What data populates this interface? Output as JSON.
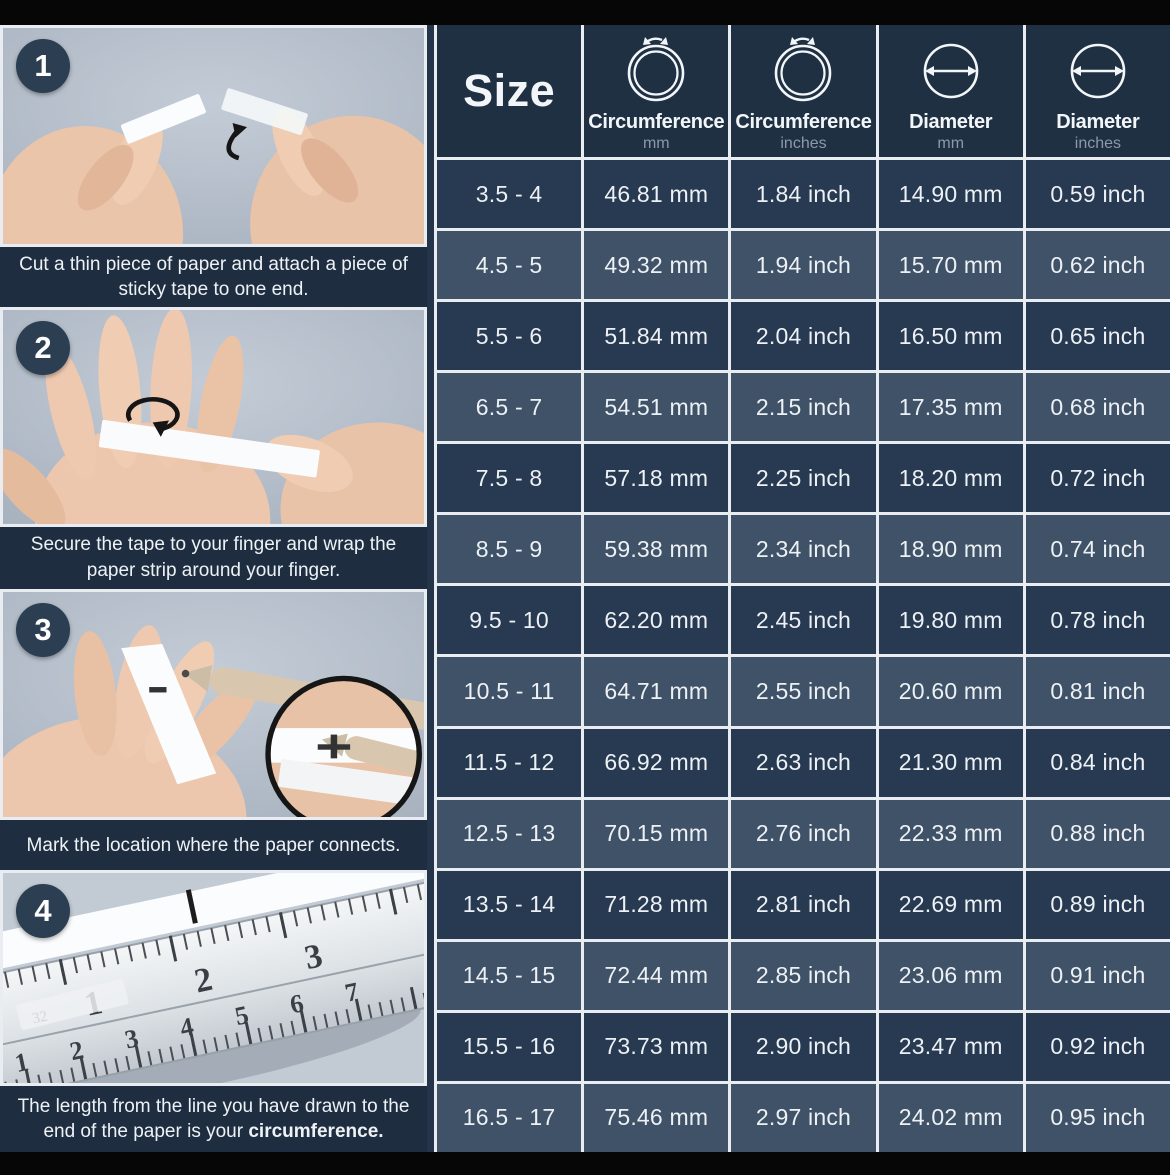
{
  "steps": [
    {
      "number": "1",
      "caption": "Cut a thin piece of paper and attach a piece of sticky tape to one end.",
      "caption_bold": ""
    },
    {
      "number": "2",
      "caption": "Secure the tape to your finger and wrap the paper strip around your finger.",
      "caption_bold": ""
    },
    {
      "number": "3",
      "caption": "Mark the location where the paper connects.",
      "caption_bold": ""
    },
    {
      "number": "4",
      "caption": "The length from the line you have drawn to the end of the paper is your ",
      "caption_bold": "circumference.",
      "ruler_inch_labels": [
        "1",
        "2",
        "3"
      ],
      "ruler_cm_labels": [
        "1",
        "2",
        "3",
        "4",
        "5",
        "6",
        "7"
      ],
      "ruler_fraction_label": "32"
    }
  ],
  "chart_data": {
    "type": "table",
    "columns": [
      {
        "label": "Size",
        "unit": "",
        "icon": ""
      },
      {
        "label": "Circumference",
        "unit": "mm",
        "icon": "ring-circumference-icon"
      },
      {
        "label": "Circumference",
        "unit": "inches",
        "icon": "ring-circumference-icon"
      },
      {
        "label": "Diameter",
        "unit": "mm",
        "icon": "diameter-icon"
      },
      {
        "label": "Diameter",
        "unit": "inches",
        "icon": "diameter-icon"
      }
    ],
    "rows": [
      [
        "3.5 - 4",
        "46.81 mm",
        "1.84 inch",
        "14.90 mm",
        "0.59 inch"
      ],
      [
        "4.5 - 5",
        "49.32 mm",
        "1.94 inch",
        "15.70 mm",
        "0.62 inch"
      ],
      [
        "5.5 - 6",
        "51.84 mm",
        "2.04 inch",
        "16.50 mm",
        "0.65 inch"
      ],
      [
        "6.5 - 7",
        "54.51 mm",
        "2.15 inch",
        "17.35 mm",
        "0.68 inch"
      ],
      [
        "7.5 - 8",
        "57.18 mm",
        "2.25 inch",
        "18.20 mm",
        "0.72 inch"
      ],
      [
        "8.5 - 9",
        "59.38 mm",
        "2.34 inch",
        "18.90 mm",
        "0.74 inch"
      ],
      [
        "9.5 - 10",
        "62.20 mm",
        "2.45 inch",
        "19.80 mm",
        "0.78 inch"
      ],
      [
        "10.5 - 11",
        "64.71 mm",
        "2.55 inch",
        "20.60 mm",
        "0.81 inch"
      ],
      [
        "11.5 - 12",
        "66.92 mm",
        "2.63 inch",
        "21.30 mm",
        "0.84 inch"
      ],
      [
        "12.5 - 13",
        "70.15 mm",
        "2.76 inch",
        "22.33 mm",
        "0.88 inch"
      ],
      [
        "13.5 - 14",
        "71.28 mm",
        "2.81 inch",
        "22.69 mm",
        "0.89 inch"
      ],
      [
        "14.5 - 15",
        "72.44 mm",
        "2.85 inch",
        "23.06 mm",
        "0.91 inch"
      ],
      [
        "15.5 - 16",
        "73.73 mm",
        "2.90 inch",
        "23.47 mm",
        "0.92 inch"
      ],
      [
        "16.5 - 17",
        "75.46 mm",
        "2.97 inch",
        "24.02 mm",
        "0.95 inch"
      ]
    ]
  },
  "colors": {
    "frame_bg": "#243549",
    "top_bottom_bar": "#060606",
    "header_bg": "#1f3043",
    "cell_dark": "#273a51",
    "cell_light": "#3f5267",
    "grid_line": "#e9edf1",
    "caption_bg": "#1e2e40",
    "photo_bg": "#b6c0cc",
    "cell_text": "#edf1f5",
    "unit_text": "#8b99a8"
  }
}
